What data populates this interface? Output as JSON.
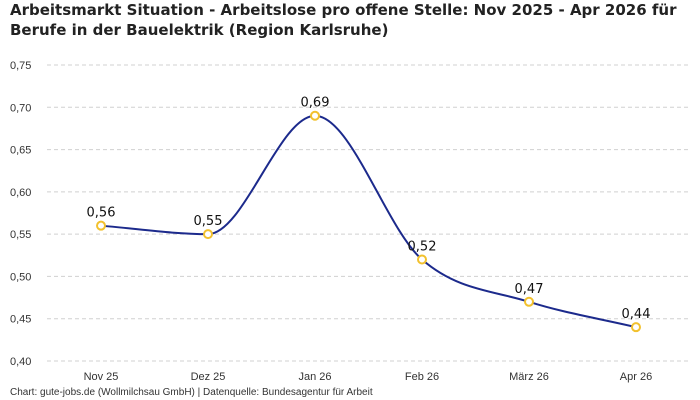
{
  "title": {
    "line1": "Arbeitsmarkt Situation - Arbeitslose pro offene Stelle: Nov 2025 - Apr 2026 für",
    "line2": "Berufe in der Bauelektrik (Region Karlsruhe)"
  },
  "footer": "Chart: gute-jobs.de (Wollmilchsau GmbH) | Datenquelle: Bundesagentur für Arbeit",
  "colors": {
    "line": "#1c2a8c",
    "marker_stroke": "#f2c12e",
    "marker_fill": "#ffffff"
  },
  "chart_data": {
    "type": "line",
    "categories": [
      "Nov 25",
      "Dez 25",
      "Jan 26",
      "Feb 26",
      "März 26",
      "Apr 26"
    ],
    "values": [
      0.56,
      0.55,
      0.69,
      0.52,
      0.47,
      0.44
    ],
    "value_labels": [
      "0,56",
      "0,55",
      "0,69",
      "0,52",
      "0,47",
      "0,44"
    ],
    "yticks": [
      0.4,
      0.45,
      0.5,
      0.55,
      0.6,
      0.65,
      0.7,
      0.75
    ],
    "ytick_labels": [
      "0,40",
      "0,45",
      "0,50",
      "0,55",
      "0,60",
      "0,65",
      "0,70",
      "0,75"
    ],
    "ylim": [
      0.4,
      0.75
    ],
    "grid": true,
    "smooth": true
  }
}
